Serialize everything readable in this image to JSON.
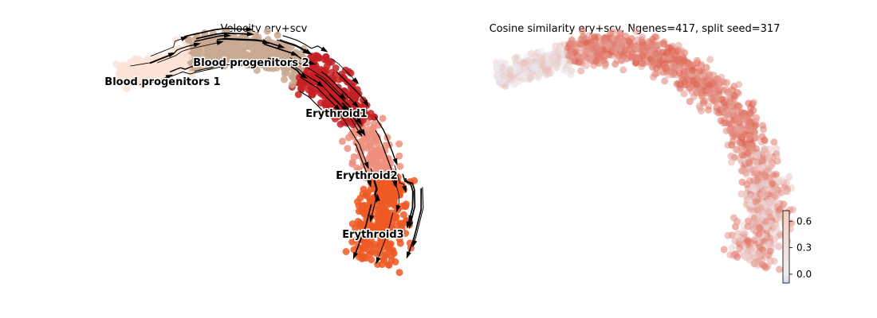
{
  "chart_data": [
    {
      "type": "scatter",
      "subtype": "umap-velocity-stream",
      "title": "Velocity ery+scv",
      "axes_visible": false,
      "grid": false,
      "clusters": [
        {
          "name": "Blood progenitors 1",
          "color": "#fbe3d6"
        },
        {
          "name": "Blood progenitors 2",
          "color": "#c9a992"
        },
        {
          "name": "Erythroid1",
          "color": "#c62025"
        },
        {
          "name": "Erythroid2",
          "color": "#ef8f7e"
        },
        {
          "name": "Erythroid3",
          "color": "#ee5a24"
        }
      ]
    },
    {
      "type": "scatter",
      "subtype": "umap-colored",
      "title": "Cosine similarity ery+scv, Ngenes=417, split seed=317",
      "axes_visible": false,
      "grid": false,
      "colorbar": {
        "ticks": [
          "0.0",
          "0.3",
          "0.6"
        ],
        "tick_values": [
          0.0,
          0.3,
          0.6
        ],
        "range": [
          -0.1,
          0.72
        ],
        "cmap": "coolwarm",
        "low_color": "#cfd8f5",
        "mid_color": "#eeeef2",
        "high_color": "#f7cdbd"
      }
    }
  ]
}
